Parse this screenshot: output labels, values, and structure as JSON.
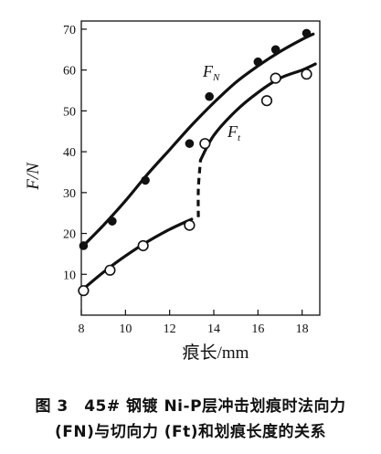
{
  "chart_data": {
    "type": "scatter",
    "xlabel": "痕长/mm",
    "ylabel": "F/N",
    "xlim": [
      8,
      18.8
    ],
    "ylim": [
      0,
      72
    ],
    "xticks": [
      8,
      10,
      12,
      14,
      16,
      18
    ],
    "yticks": [
      10,
      20,
      30,
      40,
      50,
      60,
      70
    ],
    "series": [
      {
        "name": "F_N",
        "label_main": "F",
        "label_sub": "N",
        "marker": "filled-circle",
        "x": [
          8.1,
          9.4,
          10.9,
          12.9,
          13.8,
          16.0,
          16.8,
          18.2
        ],
        "y": [
          17,
          23,
          33,
          42,
          53.5,
          62,
          65,
          69
        ],
        "fit": {
          "x": [
            8.0,
            9.0,
            10.0,
            11.0,
            12.0,
            13.0,
            14.0,
            15.0,
            16.0,
            17.0,
            18.0,
            18.5
          ],
          "y": [
            16.5,
            22.0,
            28.0,
            34.5,
            40.5,
            46.5,
            52.0,
            57.0,
            61.0,
            64.5,
            67.5,
            68.8
          ]
        }
      },
      {
        "name": "F_t",
        "label_main": "F",
        "label_sub": "t",
        "marker": "open-circle",
        "x": [
          8.1,
          9.3,
          10.8,
          12.9,
          13.6,
          16.4,
          16.8,
          18.2
        ],
        "y": [
          6,
          11,
          17,
          22,
          42,
          52.5,
          58,
          59
        ],
        "fit_low": {
          "x": [
            8.0,
            9.0,
            10.0,
            11.0,
            12.0,
            13.0
          ],
          "y": [
            6.0,
            10.5,
            14.5,
            18.0,
            21.0,
            23.5
          ]
        },
        "jump": {
          "x": [
            13.3,
            13.3,
            13.4
          ],
          "y": [
            24.0,
            31.0,
            38.0
          ]
        },
        "fit_high": {
          "x": [
            13.4,
            14.0,
            15.0,
            16.0,
            17.0,
            18.0,
            18.6
          ],
          "y": [
            38.0,
            44.0,
            50.0,
            54.5,
            58.0,
            60.0,
            61.5
          ]
        }
      }
    ]
  },
  "caption": {
    "line1": "图 3　45# 钢镀 Ni-P层冲击划痕时法向力",
    "line2": "(FN)与切向力 (Ft)和划痕长度的关系"
  }
}
